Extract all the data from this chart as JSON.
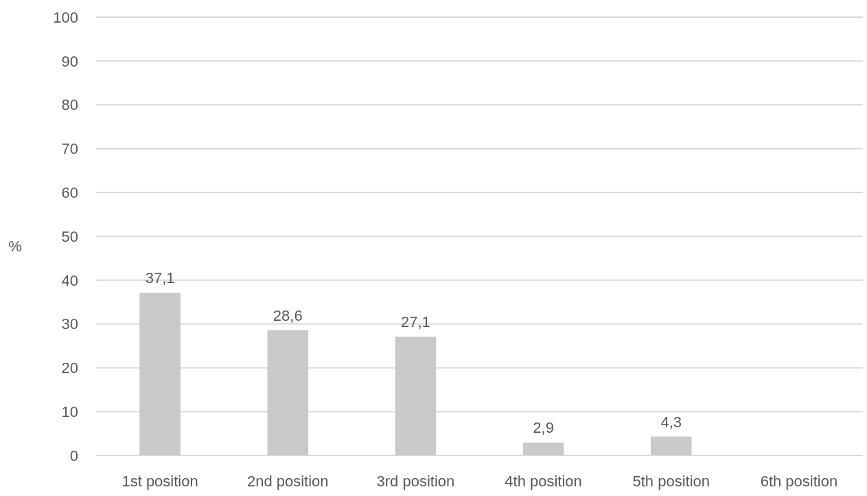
{
  "chart_data": {
    "type": "bar",
    "categories": [
      "1st position",
      "2nd position",
      "3rd position",
      "4th position",
      "5th position",
      "6th position"
    ],
    "values": [
      37.1,
      28.6,
      27.1,
      2.9,
      4.3,
      null
    ],
    "value_labels": [
      "37,1",
      "28,6",
      "27,1",
      "2,9",
      "4,3",
      null
    ],
    "color": "#c9c9c9",
    "ylabel": "%",
    "ylim": [
      0,
      100
    ],
    "yticks": [
      0,
      10,
      20,
      30,
      40,
      50,
      60,
      70,
      80,
      90,
      100
    ],
    "grid": "y"
  }
}
